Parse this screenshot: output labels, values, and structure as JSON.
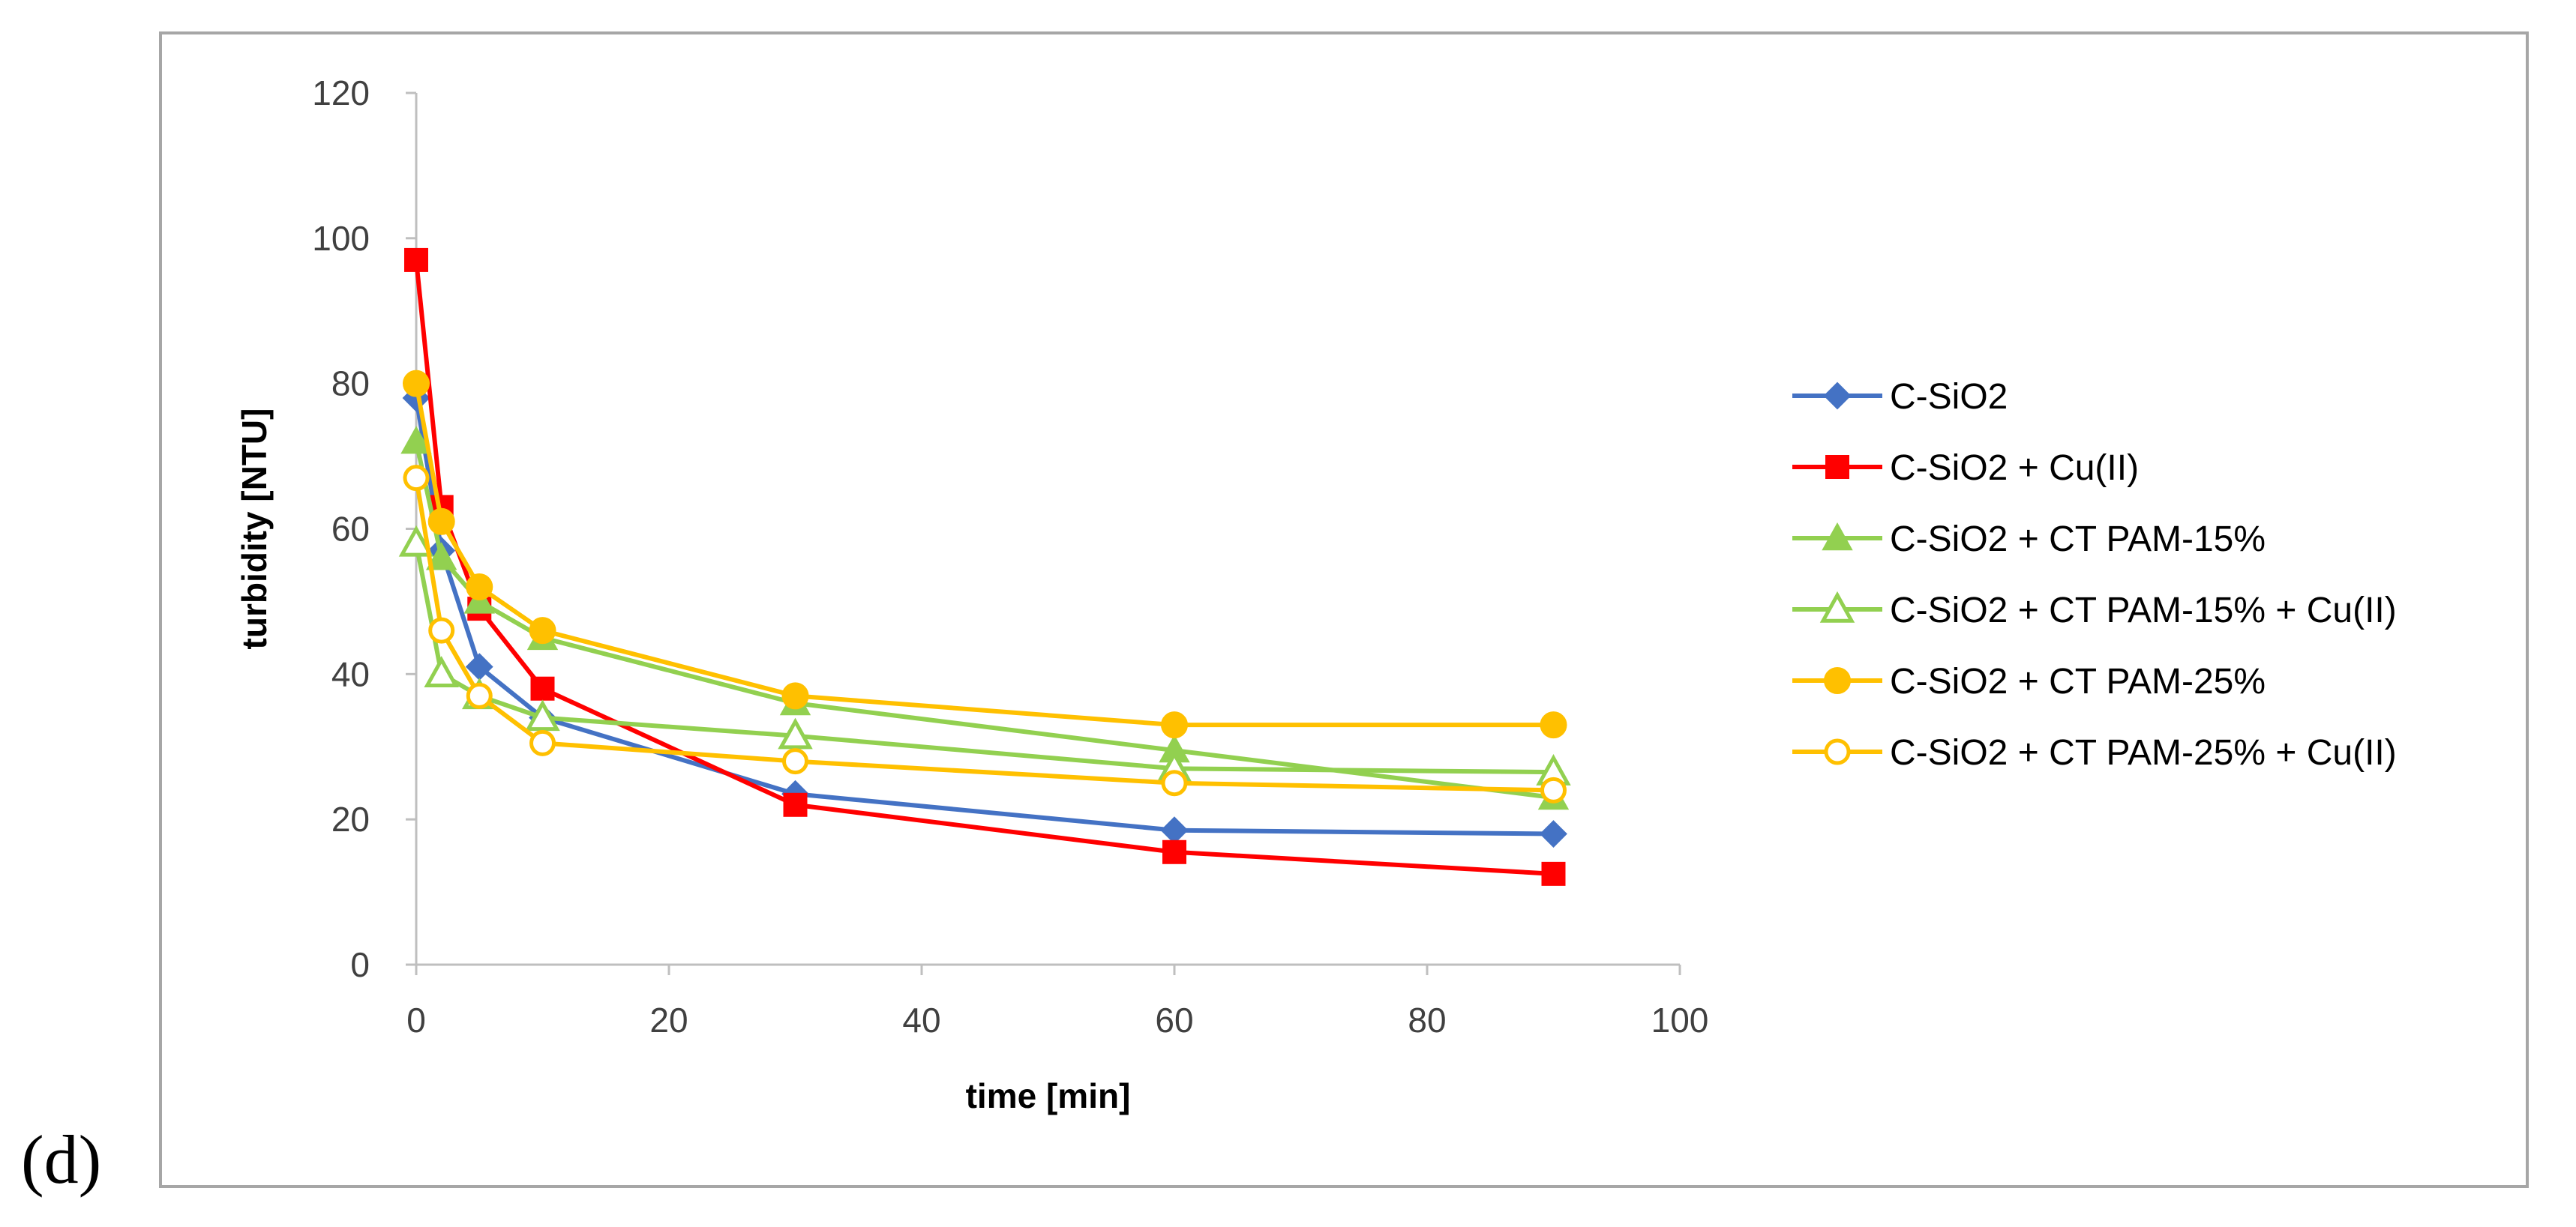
{
  "panel_label": "(d)",
  "chart_data": {
    "type": "line",
    "title": "",
    "xlabel": "time [min]",
    "ylabel": "turbidity [NTU]",
    "xlim": [
      0,
      100
    ],
    "ylim": [
      0,
      120
    ],
    "x_ticks": [
      "0",
      "20",
      "40",
      "60",
      "80",
      "100"
    ],
    "y_ticks": [
      "0",
      "20",
      "40",
      "60",
      "80",
      "100",
      "120"
    ],
    "x_tick_values": [
      0,
      20,
      40,
      60,
      80,
      100
    ],
    "y_tick_values": [
      0,
      20,
      40,
      60,
      80,
      100,
      120
    ],
    "grid": false,
    "legend_position": "right",
    "series": [
      {
        "name": "C-SiO2",
        "color": "#4472c4",
        "marker": "diamond",
        "filled": true,
        "points": [
          [
            0,
            78
          ],
          [
            2,
            57
          ],
          [
            5,
            41
          ],
          [
            10,
            34
          ],
          [
            30,
            23.5
          ],
          [
            60,
            18.5
          ],
          [
            90,
            18
          ]
        ]
      },
      {
        "name": "C-SiO2 + Cu(II)",
        "color": "#ff0000",
        "marker": "square",
        "filled": true,
        "points": [
          [
            0,
            97
          ],
          [
            2,
            63
          ],
          [
            5,
            49
          ],
          [
            10,
            38
          ],
          [
            30,
            22
          ],
          [
            60,
            15.5
          ],
          [
            90,
            12.5
          ]
        ]
      },
      {
        "name": "C-SiO2 + CT PAM-15%",
        "color": "#92d050",
        "marker": "triangle",
        "filled": true,
        "points": [
          [
            0,
            72
          ],
          [
            2,
            56
          ],
          [
            5,
            50
          ],
          [
            10,
            45
          ],
          [
            30,
            36
          ],
          [
            60,
            29.5
          ],
          [
            90,
            23
          ]
        ]
      },
      {
        "name": "C-SiO2 + CT PAM-15% + Cu(II)",
        "color": "#92d050",
        "marker": "triangle",
        "filled": false,
        "points": [
          [
            0,
            58
          ],
          [
            2,
            40
          ],
          [
            5,
            37
          ],
          [
            10,
            34
          ],
          [
            30,
            31.5
          ],
          [
            60,
            27
          ],
          [
            90,
            26.5
          ]
        ]
      },
      {
        "name": "C-SiO2 + CT PAM-25%",
        "color": "#ffc000",
        "marker": "circle",
        "filled": true,
        "points": [
          [
            0,
            80
          ],
          [
            2,
            61
          ],
          [
            5,
            52
          ],
          [
            10,
            46
          ],
          [
            30,
            37
          ],
          [
            60,
            33
          ],
          [
            90,
            33
          ]
        ]
      },
      {
        "name": "C-SiO2 + CT PAM-25% + Cu(II)",
        "color": "#ffc000",
        "marker": "circle",
        "filled": false,
        "points": [
          [
            0,
            67
          ],
          [
            2,
            46
          ],
          [
            5,
            37
          ],
          [
            10,
            30.5
          ],
          [
            30,
            28
          ],
          [
            60,
            25
          ],
          [
            90,
            24
          ]
        ]
      }
    ]
  }
}
